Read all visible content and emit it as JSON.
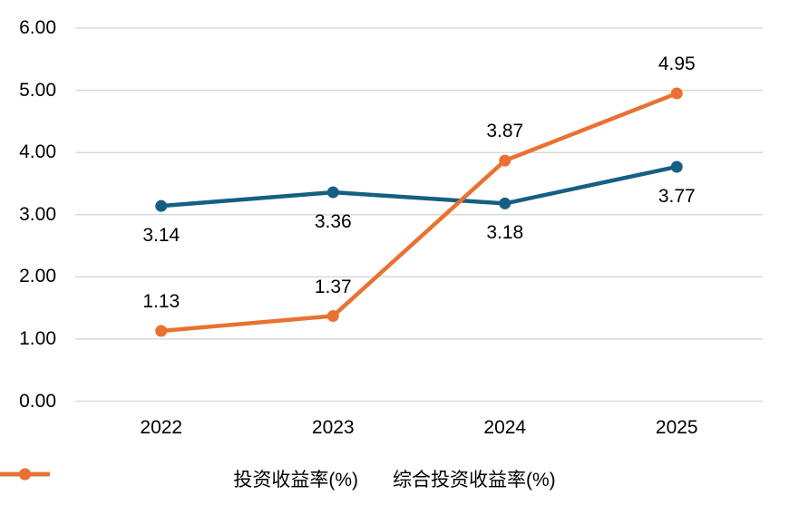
{
  "chart_data": {
    "type": "line",
    "title": "",
    "xlabel": "",
    "ylabel": "",
    "categories": [
      "2022",
      "2023",
      "2024",
      "2025"
    ],
    "series": [
      {
        "name": "投资收益率(%)",
        "color": "#156082",
        "values": [
          3.14,
          3.36,
          3.18,
          3.77
        ],
        "labels": [
          "3.14",
          "3.36",
          "3.18",
          "3.77"
        ],
        "label_position": "below",
        "marker": "circle"
      },
      {
        "name": "综合投资收益率(%)",
        "color": "#E97132",
        "values": [
          1.13,
          1.37,
          3.87,
          4.95
        ],
        "labels": [
          "1.13",
          "1.37",
          "3.87",
          "4.95"
        ],
        "label_position": "above",
        "marker": "circle"
      }
    ],
    "ylim": [
      0,
      6
    ],
    "ytick_step": 1,
    "ytick_labels": [
      "0.00",
      "1.00",
      "2.00",
      "3.00",
      "4.00",
      "5.00",
      "6.00"
    ],
    "grid": true,
    "gridline_color": "#D9D9D9",
    "background_color": "#FFFFFF",
    "text_color": "#000000",
    "legend_position": "bottom"
  }
}
